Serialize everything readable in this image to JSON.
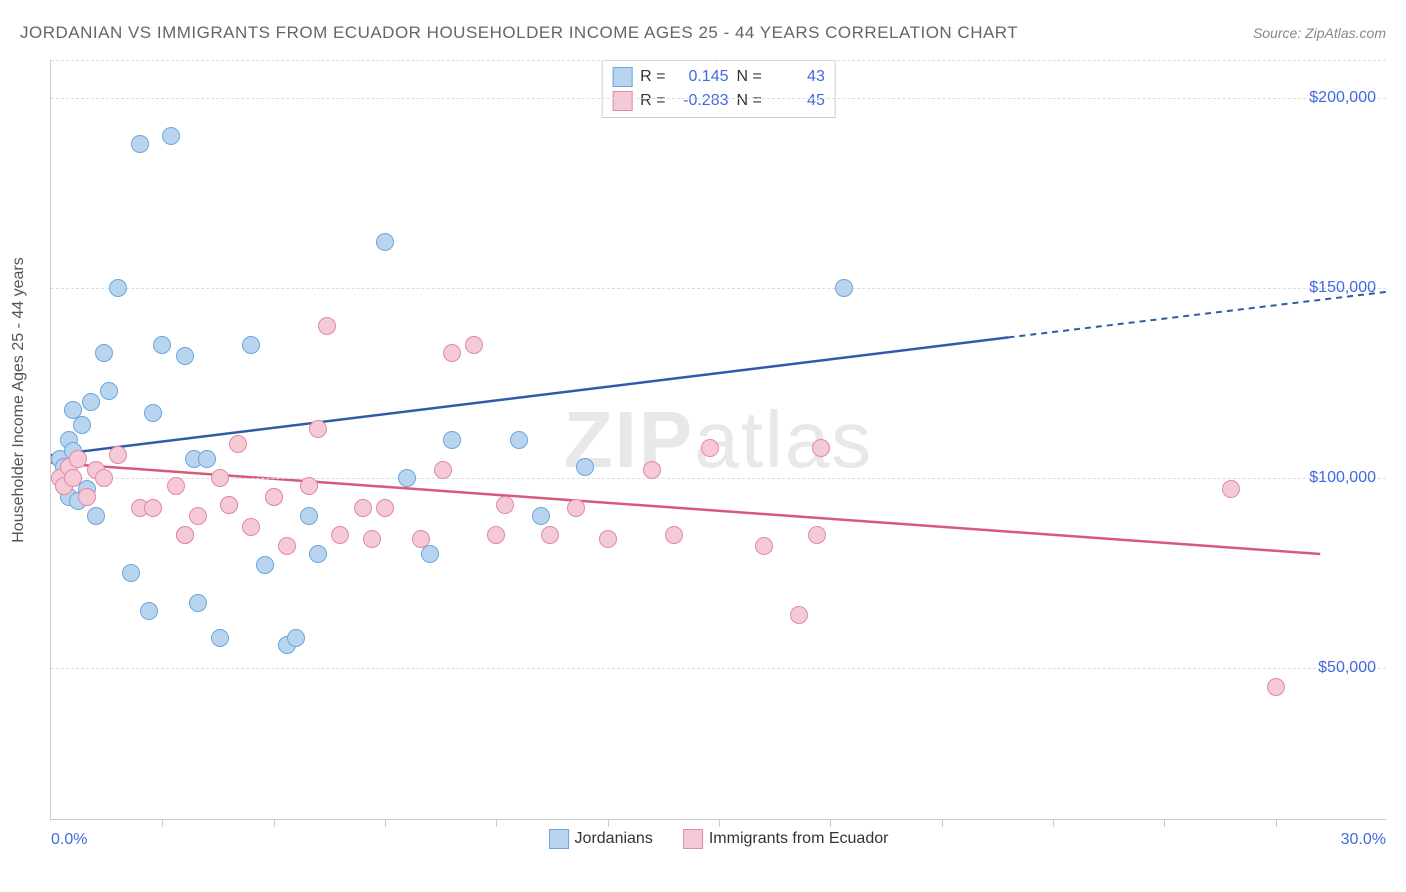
{
  "title": "JORDANIAN VS IMMIGRANTS FROM ECUADOR HOUSEHOLDER INCOME AGES 25 - 44 YEARS CORRELATION CHART",
  "source": "Source: ZipAtlas.com",
  "watermark_bold": "ZIP",
  "watermark_light": "atlas",
  "y_axis_title": "Householder Income Ages 25 - 44 years",
  "chart": {
    "type": "scatter",
    "xlim": [
      0,
      30
    ],
    "ylim": [
      10000,
      210000
    ],
    "x_min_label": "0.0%",
    "x_max_label": "30.0%",
    "y_ticks": [
      50000,
      100000,
      150000,
      200000
    ],
    "y_tick_labels": [
      "$50,000",
      "$100,000",
      "$150,000",
      "$200,000"
    ],
    "x_ticks": [
      2.5,
      5,
      7.5,
      10,
      12.5,
      15,
      17.5,
      20,
      22.5,
      25,
      27.5
    ],
    "background_color": "#ffffff",
    "grid_color": "#dddddd",
    "axis_color": "#cccccc",
    "label_color": "#4169e1",
    "marker_radius": 9,
    "marker_stroke_width": 1,
    "series": [
      {
        "name": "Jordanians",
        "fill_color": "#b8d4ee",
        "stroke_color": "#6ca6dc",
        "line_color": "#2e5ca8",
        "r_value": "0.145",
        "n_value": "43",
        "trend_line": {
          "x1": 0,
          "y1": 106000,
          "x2": 21.5,
          "y2": 137000,
          "dash_x2": 30,
          "dash_y2": 149000
        },
        "points": [
          [
            0.2,
            105000
          ],
          [
            0.3,
            98000
          ],
          [
            0.3,
            103000
          ],
          [
            0.4,
            110000
          ],
          [
            0.4,
            95000
          ],
          [
            0.5,
            118000
          ],
          [
            0.5,
            107000
          ],
          [
            0.6,
            94000
          ],
          [
            0.7,
            114000
          ],
          [
            0.8,
            97000
          ],
          [
            0.9,
            120000
          ],
          [
            1.0,
            90000
          ],
          [
            1.2,
            133000
          ],
          [
            1.3,
            123000
          ],
          [
            1.5,
            150000
          ],
          [
            1.8,
            75000
          ],
          [
            2.0,
            188000
          ],
          [
            2.2,
            65000
          ],
          [
            2.3,
            117000
          ],
          [
            2.5,
            135000
          ],
          [
            2.7,
            190000
          ],
          [
            3.0,
            132000
          ],
          [
            3.0,
            85000
          ],
          [
            3.2,
            105000
          ],
          [
            3.3,
            67000
          ],
          [
            3.5,
            105000
          ],
          [
            3.8,
            58000
          ],
          [
            4.0,
            93000
          ],
          [
            4.5,
            135000
          ],
          [
            4.8,
            77000
          ],
          [
            5.0,
            95000
          ],
          [
            5.3,
            56000
          ],
          [
            5.5,
            58000
          ],
          [
            5.8,
            90000
          ],
          [
            6.0,
            80000
          ],
          [
            7.5,
            162000
          ],
          [
            8.0,
            100000
          ],
          [
            8.5,
            80000
          ],
          [
            9.0,
            110000
          ],
          [
            10.5,
            110000
          ],
          [
            11.0,
            90000
          ],
          [
            12.0,
            103000
          ],
          [
            17.8,
            150000
          ]
        ]
      },
      {
        "name": "Immigrants from Ecuador",
        "fill_color": "#f5c9d5",
        "stroke_color": "#e08aa3",
        "line_color": "#d65a7e",
        "r_value": "-0.283",
        "n_value": "45",
        "trend_line": {
          "x1": 0,
          "y1": 104000,
          "x2": 28.5,
          "y2": 80000
        },
        "points": [
          [
            0.2,
            100000
          ],
          [
            0.3,
            98000
          ],
          [
            0.4,
            103000
          ],
          [
            0.5,
            100000
          ],
          [
            0.6,
            105000
          ],
          [
            0.8,
            95000
          ],
          [
            1.0,
            102000
          ],
          [
            1.2,
            100000
          ],
          [
            1.5,
            106000
          ],
          [
            2.0,
            92000
          ],
          [
            2.3,
            92000
          ],
          [
            2.8,
            98000
          ],
          [
            3.0,
            85000
          ],
          [
            3.3,
            90000
          ],
          [
            3.8,
            100000
          ],
          [
            4.0,
            93000
          ],
          [
            4.2,
            109000
          ],
          [
            4.5,
            87000
          ],
          [
            5.0,
            95000
          ],
          [
            5.3,
            82000
          ],
          [
            5.8,
            98000
          ],
          [
            6.0,
            113000
          ],
          [
            6.2,
            140000
          ],
          [
            6.5,
            85000
          ],
          [
            7.0,
            92000
          ],
          [
            7.2,
            84000
          ],
          [
            7.5,
            92000
          ],
          [
            8.3,
            84000
          ],
          [
            8.8,
            102000
          ],
          [
            9.0,
            133000
          ],
          [
            9.5,
            135000
          ],
          [
            10.0,
            85000
          ],
          [
            10.2,
            93000
          ],
          [
            11.2,
            85000
          ],
          [
            11.8,
            92000
          ],
          [
            12.5,
            84000
          ],
          [
            13.5,
            102000
          ],
          [
            14.0,
            85000
          ],
          [
            14.8,
            108000
          ],
          [
            16.0,
            82000
          ],
          [
            16.8,
            64000
          ],
          [
            17.2,
            85000
          ],
          [
            17.3,
            108000
          ],
          [
            26.5,
            97000
          ],
          [
            27.5,
            45000
          ]
        ]
      }
    ]
  },
  "stats_labels": {
    "r": "R =",
    "n": "N ="
  }
}
